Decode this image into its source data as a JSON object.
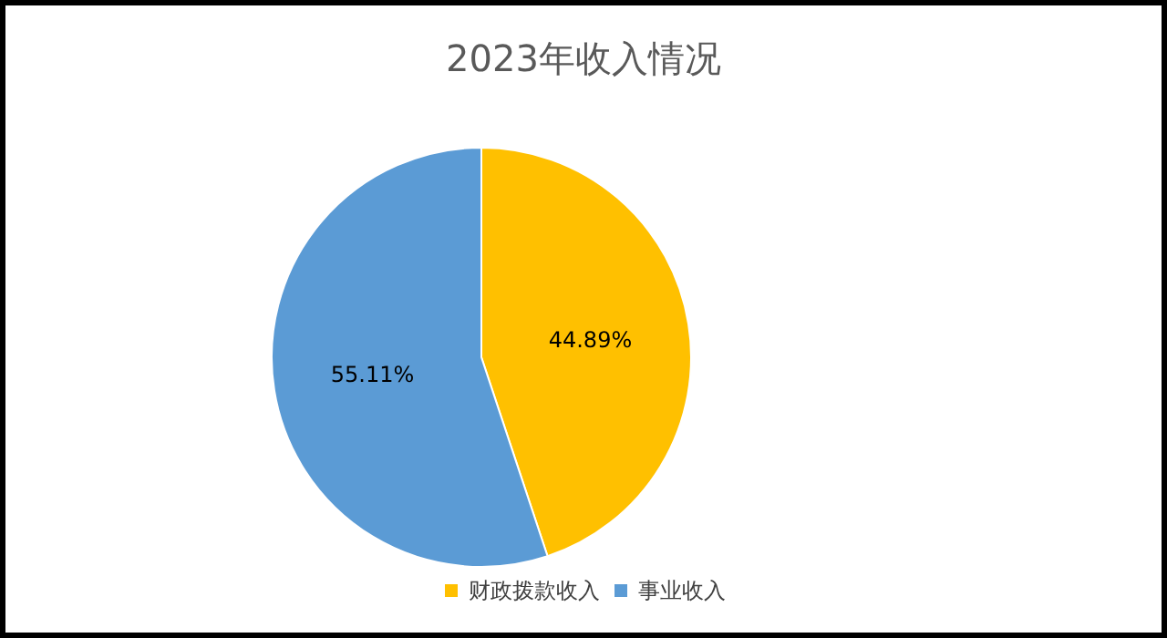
{
  "chart_data": {
    "type": "pie",
    "title": "2023年收入情况",
    "categories": [
      "财政拨款收入",
      "事业收入"
    ],
    "values": [
      44.89,
      55.11
    ],
    "colors": [
      "#ffc000",
      "#5b9bd5"
    ],
    "value_labels": [
      "44.89%",
      "55.11%"
    ],
    "legend": "bottom"
  }
}
